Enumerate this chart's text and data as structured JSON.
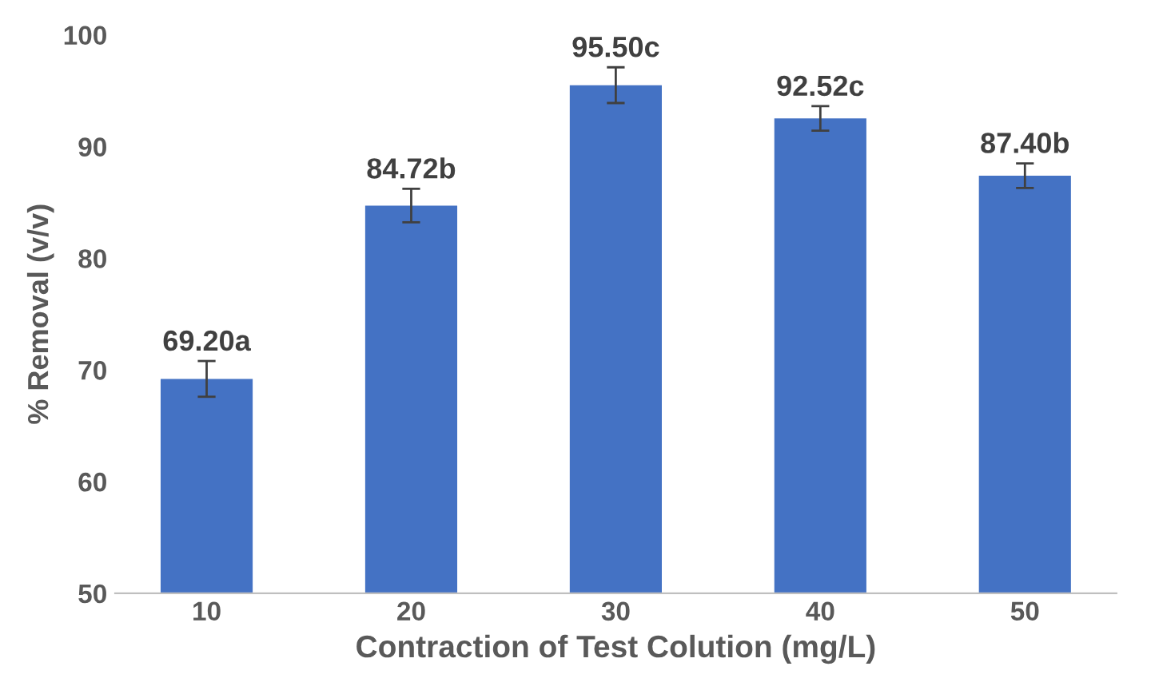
{
  "chart_data": {
    "type": "bar",
    "xlabel": "Contraction of Test Colution (mg/L)",
    "ylabel": "% Removal (v/v)",
    "categories": [
      "10",
      "20",
      "30",
      "40",
      "50"
    ],
    "values": [
      69.2,
      84.72,
      95.5,
      92.52,
      87.4
    ],
    "errors": [
      1.6,
      1.5,
      1.6,
      1.1,
      1.1
    ],
    "value_labels": [
      "69.20a",
      "84.72b",
      "95.50c",
      "92.52c",
      "87.40b"
    ],
    "color": "#4472c4",
    "ylim": [
      50,
      100
    ],
    "yticks": [
      50,
      60,
      70,
      80,
      90,
      100
    ],
    "grid": false,
    "legend": false
  }
}
